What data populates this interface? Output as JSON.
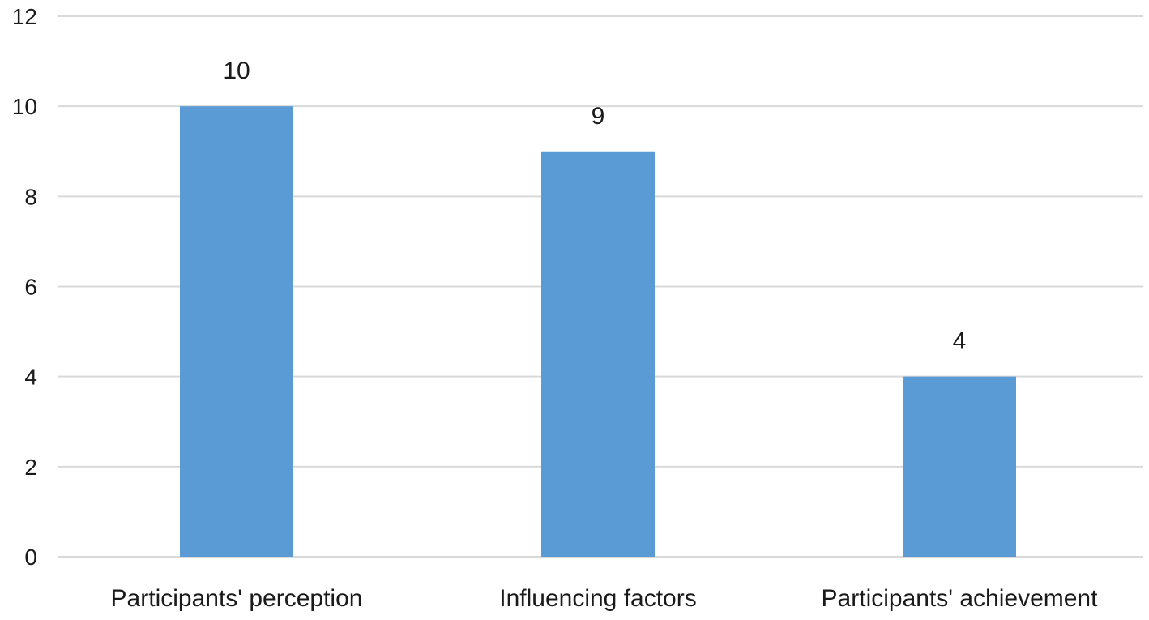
{
  "chart_data": {
    "type": "bar",
    "title": "",
    "xlabel": "",
    "ylabel": "",
    "categories": [
      "Participants' perception",
      "Influencing factors",
      "Participants' achievement"
    ],
    "values": [
      10,
      9,
      4
    ],
    "data_labels": [
      "10",
      "9",
      "4"
    ],
    "ylim": [
      0,
      12
    ],
    "yticks": [
      0,
      2,
      4,
      6,
      8,
      10,
      12
    ],
    "grid": true,
    "legend": "none",
    "bar_color": "#5b9bd5",
    "grid_color": "#d9d9d9"
  }
}
